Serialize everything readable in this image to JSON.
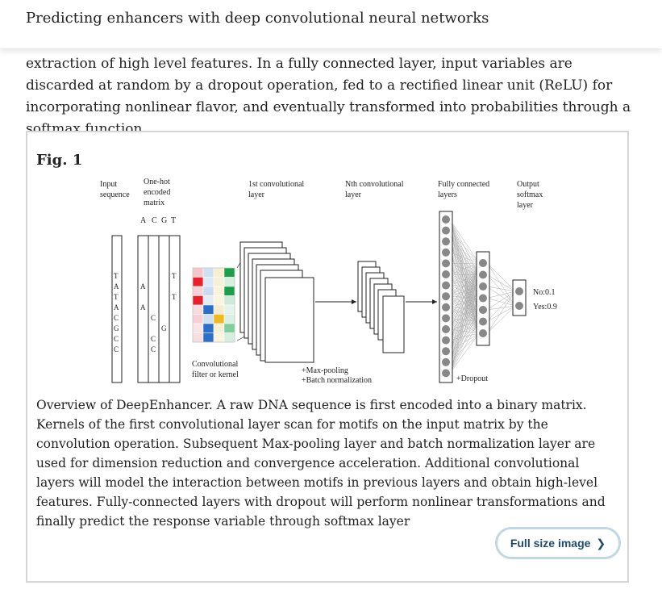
{
  "header": {
    "title": "Predicting enhancers with deep convolutional neural networks"
  },
  "intro_text": "extraction of high level features. In a fully connected layer, input variables are discarded at random by a dropout operation, fed to a rectified linear unit (ReLU) for incorporating nonlinear flavor, and eventually transformed into probabilities through a softmax function.",
  "figure": {
    "label": "Fig. 1",
    "diagram": {
      "input_label_1": "Input",
      "input_label_2": "sequence",
      "onehot_label_1": "One-hot",
      "onehot_label_2": "encoded",
      "onehot_label_3": "matrix",
      "bases": [
        "A",
        "C",
        "G",
        "T"
      ],
      "sequence": [
        "T",
        "A",
        "T",
        "A",
        "C",
        "G",
        "C",
        "C"
      ],
      "conv1_label_1": "1st convolutional",
      "conv1_label_2": "layer",
      "convn_label_1": "Nth convolutional",
      "convn_label_2": "layer",
      "fc_label_1": "Fully connected",
      "fc_label_2": "layers",
      "out_label_1": "Output",
      "out_label_2": "softmax",
      "out_label_3": "layer",
      "filter_label_1": "Convolutional",
      "filter_label_2": "filter or kernel",
      "pool_label_1": "+Max-pooling",
      "pool_label_2": "+Batch normalization",
      "dropout_label": "+Dropout",
      "out_no": "No:0.1",
      "out_yes": "Yes:0.9",
      "colors": {
        "A": "#e8202a",
        "C": "#2a6fc9",
        "G": "#f2b820",
        "T": "#1aa04a"
      }
    },
    "caption": "Overview of DeepEnhancer. A raw DNA sequence is first encoded into a binary matrix. Kernels of the first convolutional layer scan for motifs on the input matrix by the convolution operation. Subsequent Max-pooling layer and batch normalization layer are used for dimension reduction and convergence acceleration. Additional convolutional layers will model the interaction between motifs in previous layers and obtain high-level features. Fully-connected layers with dropout will perform nonlinear transformations and finally predict the response variable through softmax layer",
    "full_size_label": "Full size image",
    "full_size_icon": "chevron-right-icon"
  }
}
